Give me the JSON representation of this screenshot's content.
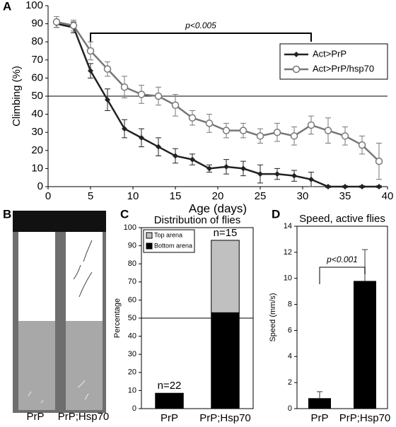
{
  "chart_data": [
    {
      "panel": "A",
      "type": "line",
      "xlabel": "Age (days)",
      "ylabel": "Climbing (%)",
      "x": [
        1,
        3,
        5,
        7,
        9,
        11,
        13,
        15,
        17,
        19,
        21,
        23,
        25,
        27,
        29,
        31,
        33,
        35,
        37,
        39
      ],
      "series": [
        {
          "name": "Act>PrP",
          "color": "#222222",
          "marker": "diamond",
          "values": [
            90,
            88,
            64,
            48,
            32,
            27,
            22,
            17,
            15,
            10,
            11,
            10,
            7,
            7,
            6,
            4,
            0,
            0,
            0,
            0
          ],
          "errors": [
            2,
            3,
            4,
            6,
            5,
            5,
            5,
            4,
            3,
            2,
            4,
            4,
            5,
            3,
            3,
            4,
            0.5,
            0.5,
            0.5,
            0.5
          ]
        },
        {
          "name": "Act>PrP/hsp70",
          "color": "#777777",
          "marker": "circle",
          "values": [
            91,
            89,
            75,
            65,
            55,
            51,
            50,
            45,
            38,
            35,
            31,
            31,
            28,
            30,
            28,
            34,
            31,
            28,
            23,
            14
          ],
          "errors": [
            3,
            3,
            5,
            4,
            6,
            5,
            5,
            6,
            4,
            5,
            4,
            4,
            4,
            5,
            5,
            5,
            7,
            5,
            5,
            10
          ]
        }
      ],
      "xlim": [
        0,
        40
      ],
      "xticks": [
        0,
        5,
        10,
        15,
        20,
        25,
        30,
        35,
        40
      ],
      "ylim": [
        0,
        100
      ],
      "yticks": [
        0,
        10,
        20,
        30,
        40,
        50,
        60,
        70,
        80,
        90,
        100
      ],
      "hline": 50,
      "legend": "upper right",
      "annotation": {
        "text": "p<0.005",
        "span": [
          5,
          31
        ]
      }
    },
    {
      "panel": "C",
      "type": "stacked_bar",
      "title": "Distribution of flies",
      "ylabel": "Percentage",
      "categories": [
        "PrP",
        "PrP;Hsp70"
      ],
      "series": [
        {
          "name": "Top arena",
          "color": "#c0c0c0",
          "values": [
            0,
            40
          ]
        },
        {
          "name": "Bottom arena",
          "color": "#000000",
          "values": [
            8.5,
            53
          ]
        }
      ],
      "bar_labels": [
        "n=22",
        "n=15"
      ],
      "ylim": [
        0,
        100
      ],
      "yticks": [
        0,
        10,
        20,
        30,
        40,
        50,
        60,
        70,
        80,
        90,
        100
      ],
      "hline": 50,
      "legend": "upper left"
    },
    {
      "panel": "D",
      "type": "bar",
      "title": "Speed, active flies",
      "ylabel": "Speed (mm/s)",
      "categories": [
        "PrP",
        "PrP;Hsp70"
      ],
      "values": [
        0.8,
        9.8
      ],
      "errors": [
        0.5,
        2.4
      ],
      "color": "#000000",
      "ylim": [
        0,
        14
      ],
      "yticks": [
        0,
        2,
        4,
        6,
        8,
        10,
        12,
        14
      ],
      "annotation": {
        "text": "p<0.001"
      }
    }
  ],
  "photo": {
    "panel": "B",
    "labels": [
      "PrP",
      "PrP;Hsp70"
    ]
  }
}
